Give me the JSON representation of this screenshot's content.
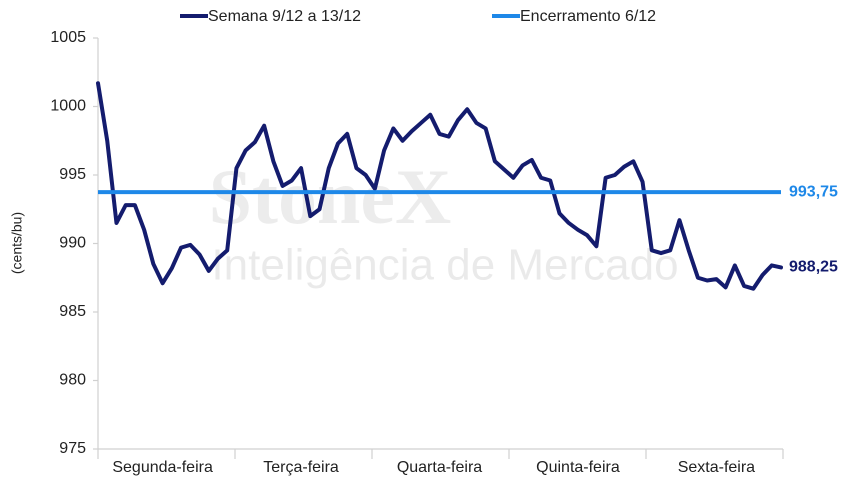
{
  "chart_data": {
    "type": "line",
    "y_label": "(cents/bu)",
    "watermark": {
      "brand": "StoneX",
      "subtitle": "Inteligência de Mercado"
    },
    "categories": [
      null,
      null,
      null,
      null,
      null,
      null,
      null,
      "Segunda-feira",
      null,
      null,
      null,
      null,
      null,
      null,
      null,
      null,
      null,
      null,
      null,
      null,
      null,
      null,
      "Terça-feira",
      null,
      null,
      null,
      null,
      null,
      null,
      null,
      null,
      null,
      null,
      null,
      null,
      null,
      null,
      "Quarta-feira",
      null,
      null,
      null,
      null,
      null,
      null,
      null,
      null,
      null,
      null,
      null,
      null,
      null,
      null,
      "Quinta-feira",
      null,
      null,
      null,
      null,
      null,
      null,
      null,
      null,
      null,
      null,
      null,
      null,
      null,
      null,
      "Sexta-feira",
      null,
      null,
      null,
      null,
      null,
      null,
      null
    ],
    "series": [
      {
        "name": "Semana 9/12 a 13/12",
        "color": "#141c6e",
        "values": [
          1001.7,
          997.5,
          991.5,
          992.8,
          992.8,
          991,
          988.5,
          987.1,
          988.2,
          989.7,
          989.9,
          989.2,
          988,
          988.9,
          989.5,
          995.5,
          996.8,
          997.4,
          998.6,
          996,
          994.2,
          994.6,
          995.5,
          992,
          992.5,
          995.5,
          997.3,
          998,
          995.5,
          995,
          994,
          996.8,
          998.4,
          997.5,
          998.2,
          998.8,
          999.4,
          998,
          997.8,
          999,
          999.8,
          998.8,
          998.4,
          996,
          995.4,
          994.8,
          995.7,
          996.1,
          994.8,
          994.6,
          992.2,
          991.5,
          991,
          990.6,
          989.8,
          994.8,
          995,
          995.6,
          996,
          994.5,
          989.5,
          989.3,
          989.5,
          991.7,
          989.5,
          987.5,
          987.3,
          987.4,
          986.8,
          988.4,
          986.9,
          986.7,
          987.7,
          988.4,
          988.25
        ],
        "value_labels": [
          null,
          null,
          null,
          null,
          null,
          null,
          null,
          null,
          null,
          null,
          null,
          null,
          null,
          null,
          null,
          null,
          null,
          null,
          null,
          null,
          null,
          null,
          null,
          null,
          null,
          null,
          null,
          null,
          null,
          null,
          null,
          null,
          null,
          null,
          null,
          null,
          null,
          null,
          null,
          null,
          null,
          null,
          null,
          null,
          null,
          null,
          null,
          null,
          null,
          null,
          null,
          null,
          null,
          null,
          null,
          null,
          null,
          null,
          null,
          null,
          null,
          null,
          null,
          null,
          null,
          null,
          null,
          null,
          null,
          null,
          null,
          null,
          null,
          null,
          "988,25"
        ]
      },
      {
        "name": "Encerramento 6/12",
        "color": "#1e88e8",
        "value": 993.75,
        "value_label": "993,75"
      }
    ],
    "ylim": [
      975,
      1005
    ],
    "yticks": [
      975,
      980,
      985,
      990,
      995,
      1000,
      1005
    ]
  }
}
